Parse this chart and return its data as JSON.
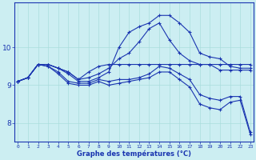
{
  "xlabel": "Graphe des températures (°C)",
  "background_color": "#cceef2",
  "grid_color": "#aadddd",
  "line_color": "#1a35b0",
  "hours": [
    0,
    1,
    2,
    3,
    4,
    5,
    6,
    7,
    8,
    9,
    10,
    11,
    12,
    13,
    14,
    15,
    16,
    17,
    18,
    19,
    20,
    21,
    22,
    23
  ],
  "line1": [
    9.1,
    9.2,
    9.55,
    9.55,
    9.45,
    9.35,
    9.15,
    9.35,
    9.5,
    9.55,
    9.55,
    9.55,
    9.55,
    9.55,
    9.55,
    9.55,
    9.55,
    9.55,
    9.55,
    9.55,
    9.4,
    9.4,
    9.4,
    9.4
  ],
  "line2": [
    9.1,
    9.2,
    9.55,
    9.55,
    9.45,
    9.35,
    9.15,
    9.2,
    9.3,
    9.45,
    9.7,
    9.85,
    10.15,
    10.5,
    10.65,
    10.2,
    9.85,
    9.65,
    9.55,
    9.55,
    9.55,
    9.55,
    9.55,
    9.55
  ],
  "line3": [
    9.1,
    9.2,
    9.55,
    9.5,
    9.35,
    9.1,
    9.05,
    9.05,
    9.15,
    9.1,
    9.15,
    9.15,
    9.2,
    9.3,
    9.5,
    9.45,
    9.3,
    9.15,
    8.75,
    8.65,
    8.6,
    8.7,
    8.7,
    7.75
  ],
  "line4": [
    9.1,
    9.2,
    9.55,
    9.5,
    9.3,
    9.05,
    9.0,
    9.0,
    9.1,
    9.0,
    9.05,
    9.1,
    9.15,
    9.2,
    9.35,
    9.35,
    9.15,
    8.95,
    8.5,
    8.4,
    8.35,
    8.55,
    8.6,
    7.7
  ],
  "line5": [
    9.1,
    9.2,
    9.55,
    9.55,
    9.45,
    9.3,
    9.1,
    9.1,
    9.2,
    9.35,
    10.0,
    10.4,
    10.55,
    10.65,
    10.85,
    10.85,
    10.65,
    10.4,
    9.85,
    9.75,
    9.7,
    9.5,
    9.45,
    9.45
  ],
  "ylim": [
    7.5,
    11.2
  ],
  "yticks": [
    8,
    9,
    10
  ],
  "xlim": [
    -0.3,
    23.3
  ],
  "xtick_labels": [
    "0",
    "1",
    "2",
    "3",
    "4",
    "5",
    "6",
    "7",
    "8",
    "9",
    "10",
    "11",
    "12",
    "13",
    "14",
    "15",
    "16",
    "17",
    "18",
    "19",
    "20",
    "21",
    "22",
    "23"
  ]
}
